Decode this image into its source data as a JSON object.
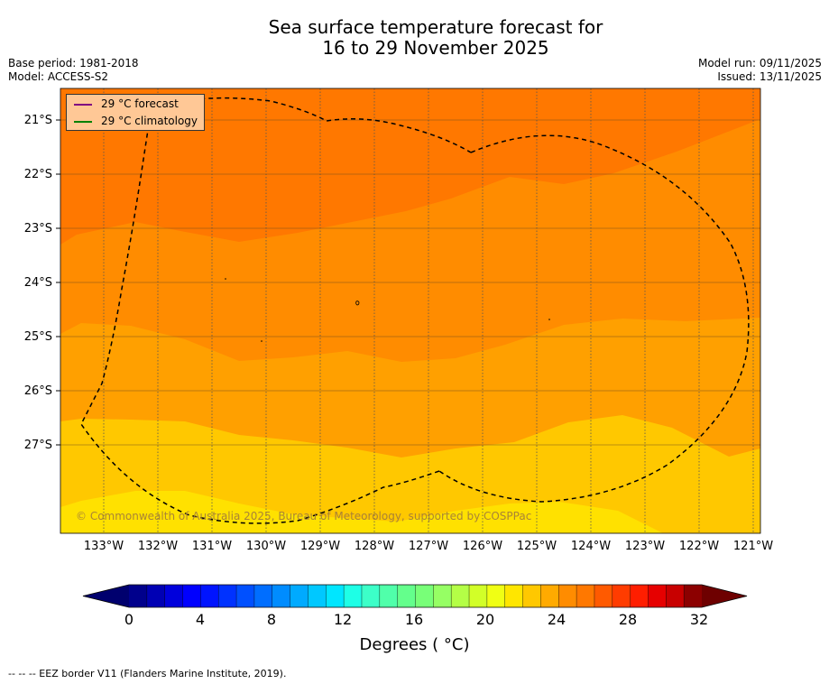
{
  "title": {
    "line1": "Sea surface temperature forecast for",
    "line2": "16 to 29 November 2025"
  },
  "meta": {
    "base_period": "Base period: 1981-2018",
    "model": "Model: ACCESS-S2",
    "model_run": "Model run: 09/11/2025",
    "issued": "Issued: 13/11/2025"
  },
  "legend": {
    "forecast": {
      "label": "29 °C  forecast",
      "color": "#800080"
    },
    "climatology": {
      "label": "29 °C  climatology",
      "color": "#008000"
    }
  },
  "axes": {
    "lat_labels": [
      "21°S",
      "22°S",
      "23°S",
      "24°S",
      "25°S",
      "26°S",
      "27°S"
    ],
    "lon_labels": [
      "133°W",
      "132°W",
      "131°W",
      "130°W",
      "129°W",
      "128°W",
      "127°W",
      "126°W",
      "125°W",
      "124°W",
      "123°W",
      "122°W",
      "121°W"
    ]
  },
  "copyright": "© Commonwealth of Australia 2025, Bureau of Meteorology, supported by COSPPac",
  "colorbar": {
    "ticks": [
      "0",
      "4",
      "8",
      "12",
      "16",
      "20",
      "24",
      "28",
      "32"
    ],
    "title": "Degrees ( °C)",
    "range": [
      0,
      32
    ],
    "step": 1,
    "colors": [
      "#00008c",
      "#0000b4",
      "#0000dc",
      "#0000ff",
      "#0014ff",
      "#0032ff",
      "#0050ff",
      "#006eff",
      "#008cff",
      "#00aaff",
      "#00c8ff",
      "#00e6ff",
      "#1effe6",
      "#3cffc8",
      "#50ffaa",
      "#64ff8c",
      "#78ff78",
      "#96ff64",
      "#b4ff46",
      "#d2ff28",
      "#f0ff14",
      "#ffe600",
      "#ffc800",
      "#ffaa00",
      "#ff8c00",
      "#ff7800",
      "#ff5a00",
      "#ff3c00",
      "#ff1e00",
      "#e60000",
      "#c80000",
      "#8c0000"
    ],
    "under_color": "#00006e",
    "over_color": "#6e0000"
  },
  "footnote": "--  --  -- EEZ border V11 (Flanders Marine Institute, 2019).",
  "map_fills": {
    "band_26_27": "#ff7800",
    "band_25_26": "#ff8c00",
    "band_24_25": "#ffa000",
    "band_23_24": "#ffc800",
    "band_22_23": "#ffe100"
  }
}
